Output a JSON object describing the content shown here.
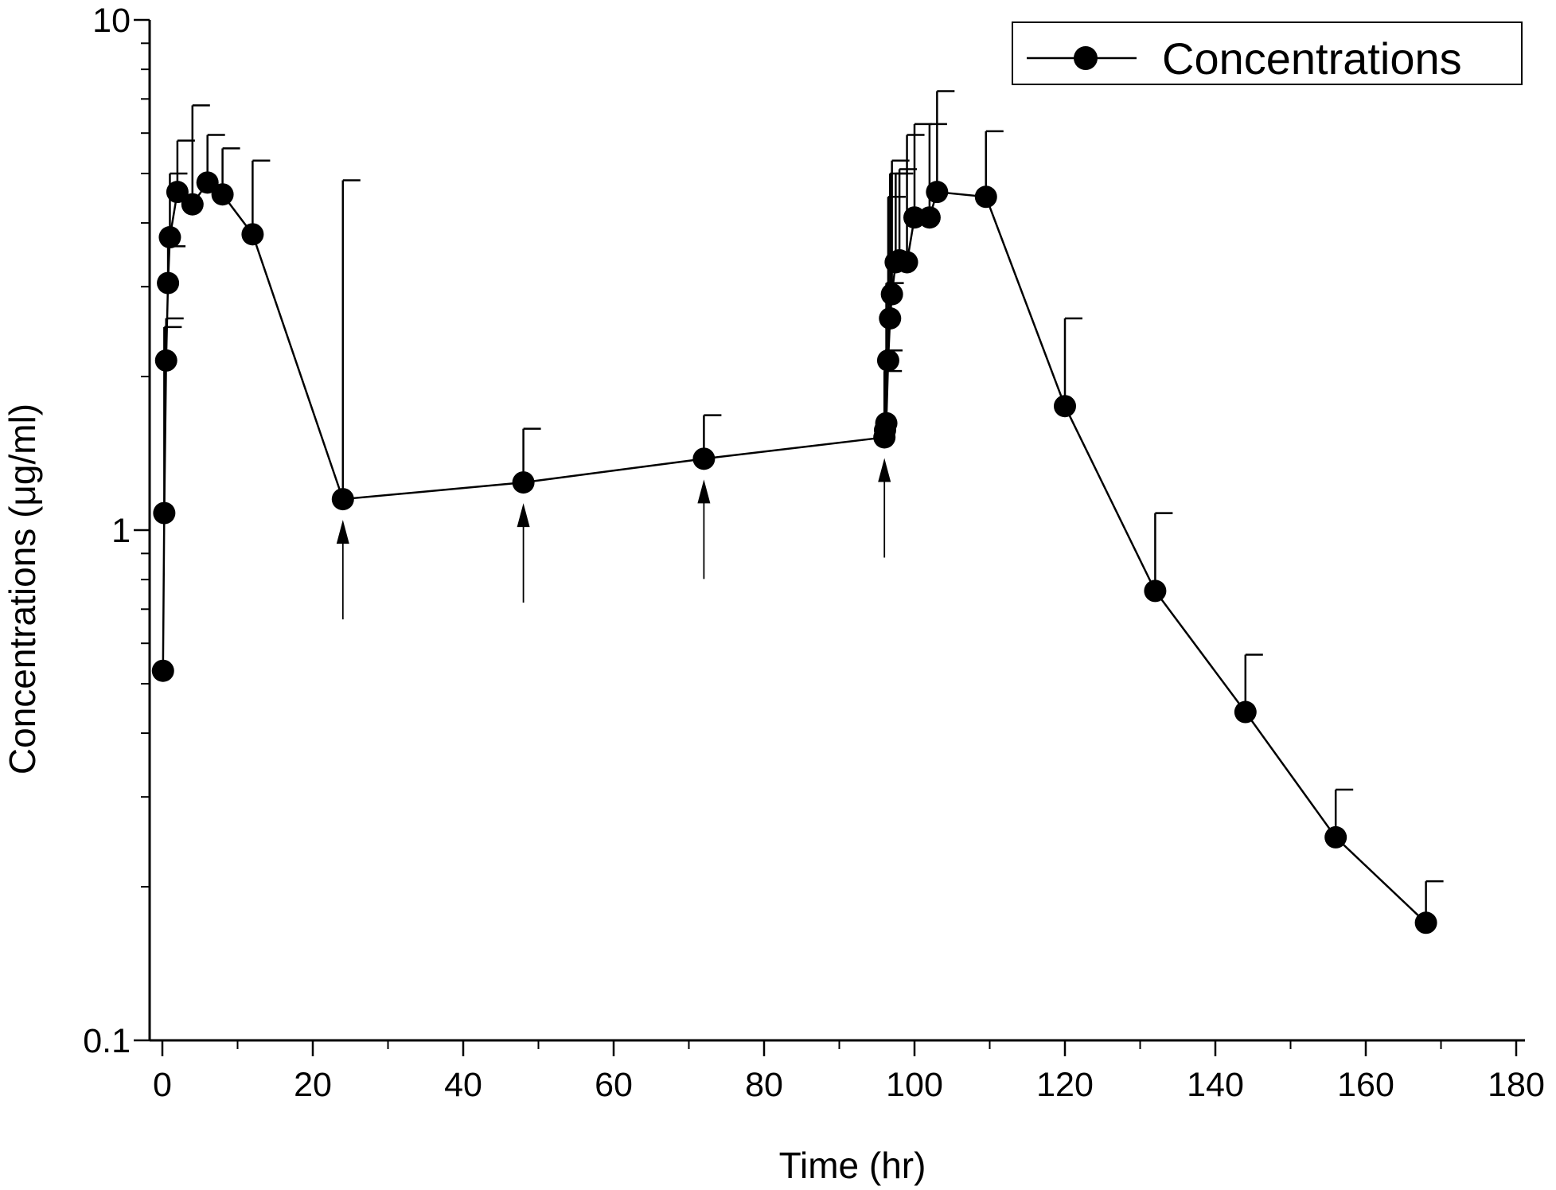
{
  "chart_data": {
    "type": "line",
    "xlabel": "Time (hr)",
    "ylabel": "Concentrations (μg/ml)",
    "xlim": [
      -2,
      180
    ],
    "ylim": [
      0.1,
      10
    ],
    "y_scale": "log",
    "x_ticks": [
      0,
      20,
      40,
      60,
      80,
      100,
      120,
      140,
      160,
      180
    ],
    "y_ticks": [
      0.1,
      1,
      10
    ],
    "x_tick_labels": [
      "0",
      "20",
      "40",
      "60",
      "80",
      "100",
      "120",
      "140",
      "160",
      "180"
    ],
    "y_tick_labels": [
      "0.1",
      "1",
      "10"
    ],
    "grid": false,
    "legend": {
      "position": "top-right",
      "entries": [
        "Concentrations"
      ]
    },
    "series": [
      {
        "name": "Concentrations",
        "color": "#000000",
        "marker": "filled-circle",
        "x": [
          0.083,
          0.25,
          0.5,
          0.75,
          1.0,
          2.0,
          4.0,
          6.0,
          8.0,
          12.0,
          24.0,
          48.0,
          72.0,
          96.0,
          96.083,
          96.25,
          96.5,
          96.75,
          97.0,
          97.5,
          98.0,
          99.0,
          100.0,
          102.0,
          103.0,
          109.5,
          120.0,
          132.0,
          144.0,
          156.0,
          168.0
        ],
        "y": [
          0.53,
          1.08,
          2.15,
          3.05,
          3.75,
          4.6,
          4.35,
          4.8,
          4.55,
          3.8,
          1.15,
          1.24,
          1.38,
          1.52,
          1.57,
          1.62,
          2.15,
          2.6,
          2.9,
          3.35,
          3.38,
          3.35,
          4.1,
          4.1,
          4.6,
          4.5,
          1.75,
          0.76,
          0.44,
          0.25,
          0.17
        ],
        "err_up": [
          null,
          2.5,
          2.6,
          3.6,
          5.0,
          5.8,
          6.8,
          5.95,
          5.6,
          5.3,
          4.85,
          1.58,
          1.68,
          2.05,
          2.25,
          3.05,
          4.5,
          5.0,
          5.3,
          5.0,
          5.1,
          5.95,
          6.25,
          6.25,
          7.25,
          6.05,
          2.6,
          1.08,
          0.57,
          0.31,
          0.205
        ]
      }
    ],
    "dose_arrows_at": [
      24,
      48,
      72,
      96
    ]
  }
}
